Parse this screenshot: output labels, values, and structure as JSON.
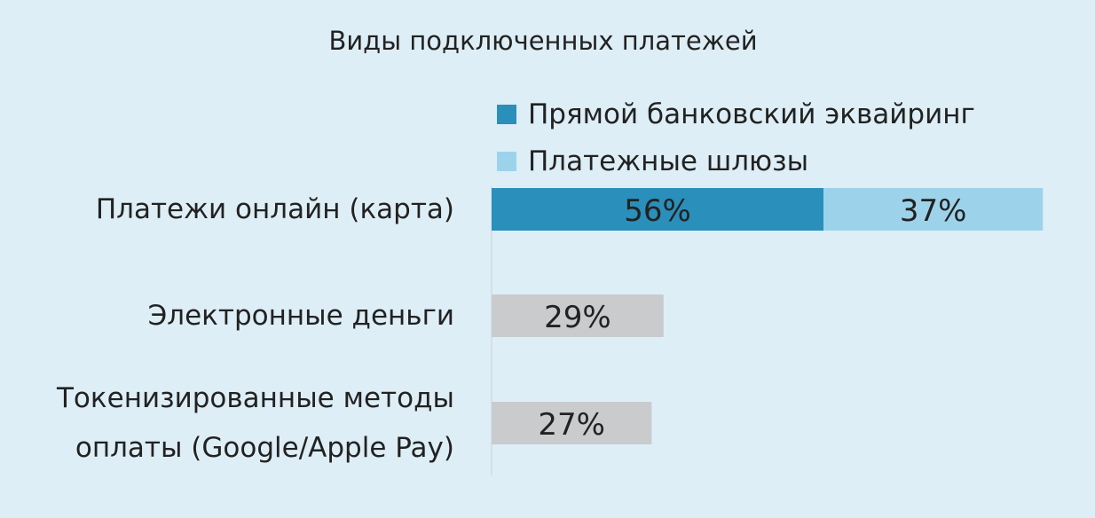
{
  "chart_data": {
    "type": "stacked-bar-horizontal",
    "title": "Виды подключенных платежей",
    "categories": [
      "Платежи онлайн (карта)",
      "Электронные деньги",
      "Токенизированные методы\nоплаты (Google/Apple Pay)"
    ],
    "series": [
      {
        "name": "Прямой банковский эквайринг",
        "color": "#2a8fbb",
        "values": [
          56,
          null,
          null
        ],
        "value_labels": [
          "56%",
          null,
          null
        ]
      },
      {
        "name": "Платежные шлюзы",
        "color": "#9dd3ea",
        "values": [
          37,
          null,
          null
        ],
        "value_labels": [
          "37%",
          null,
          null
        ]
      },
      {
        "color": "#c9cbcd",
        "values": [
          null,
          29,
          27
        ],
        "value_labels": [
          null,
          "29%",
          "27%"
        ]
      }
    ]
  }
}
